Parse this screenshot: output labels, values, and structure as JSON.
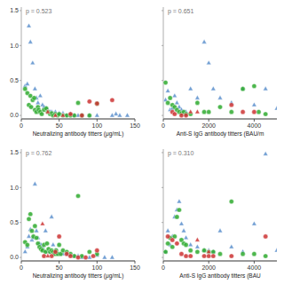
{
  "chart_data": [
    {
      "type": "scatter",
      "annotation": "p = 0.523",
      "x_label": "Neutralizing antibody titters (μg/mL)",
      "xlim": [
        0,
        150
      ],
      "ylim": [
        -0.05,
        1.55
      ],
      "yticks": [
        {
          "value": 0.0,
          "label": "0.0"
        },
        0.5,
        {
          "value": 1.0,
          "label": "1.0"
        },
        1.5
      ],
      "xticks": [
        0,
        50,
        100,
        150
      ],
      "series": [
        {
          "color": "#5b8fcc",
          "marker": "triangle",
          "x": [
            5,
            8,
            10,
            12,
            15,
            18,
            20,
            22,
            25,
            28,
            30,
            33,
            35,
            38,
            40,
            42,
            45,
            50,
            55,
            60,
            65,
            70,
            75,
            80,
            90,
            100,
            120,
            125,
            130,
            140
          ],
          "values": [
            0.42,
            0.45,
            1.28,
            1.05,
            0.75,
            0.38,
            0.25,
            0.18,
            0.28,
            0.15,
            0.12,
            0.1,
            0.08,
            0.05,
            0.05,
            0.03,
            0.05,
            0.03,
            0.03,
            0.0,
            0.02,
            0.0,
            0.0,
            0.0,
            0.0,
            0.0,
            0.0,
            0.02,
            0.0,
            0.0
          ]
        },
        {
          "color": "#2eaa2e",
          "marker": "circle",
          "x": [
            5,
            8,
            10,
            12,
            13,
            15,
            17,
            18,
            20,
            22,
            23,
            25,
            27,
            30,
            33,
            35,
            38,
            40,
            42,
            45,
            48,
            50,
            55,
            60,
            65,
            70,
            75,
            80,
            90,
            100
          ],
          "values": [
            0.38,
            0.32,
            0.15,
            0.28,
            0.12,
            0.22,
            0.25,
            0.08,
            0.05,
            0.12,
            0.08,
            0.05,
            0.02,
            0.08,
            0.1,
            0.05,
            0.02,
            0.03,
            0.0,
            0.02,
            0.0,
            0.02,
            0.0,
            0.0,
            0.0,
            0.0,
            0.18,
            0.0,
            0.0,
            0.17
          ]
        },
        {
          "color": "#cc3333",
          "marker": "circle",
          "x": [
            65,
            80,
            90,
            100,
            120
          ],
          "values": [
            0.02,
            0.0,
            0.2,
            0.17,
            0.22
          ]
        },
        {
          "color": "#cc3333",
          "marker": "triangle",
          "x": [
            35,
            45,
            55
          ],
          "values": [
            0.05,
            0.0,
            0.0
          ]
        }
      ]
    },
    {
      "type": "scatter",
      "annotation": "p = 0.651",
      "x_label": "Anti-S IgG antibody titters (BAU/m",
      "xlim": [
        0,
        5000
      ],
      "ylim": [
        -0.05,
        1.55
      ],
      "yticks": [
        {
          "value": 0.0,
          "label": "0.0"
        },
        0.5,
        {
          "value": 1.0,
          "label": "1.0"
        },
        1.5
      ],
      "xticks": [
        0,
        2000,
        4000
      ],
      "tick_labels": "x",
      "series": [
        {
          "color": "#5b8fcc",
          "marker": "triangle",
          "x": [
            100,
            200,
            300,
            400,
            500,
            600,
            700,
            800,
            900,
            1000,
            1200,
            1500,
            1800,
            2000,
            2200,
            2500,
            3000,
            3500,
            4000,
            4500,
            5000
          ],
          "values": [
            0.22,
            0.35,
            0.08,
            0.1,
            0.28,
            0.18,
            0.12,
            0.08,
            0.05,
            0.05,
            0.38,
            0.25,
            1.05,
            0.75,
            0.38,
            0.25,
            0.18,
            0.38,
            0.15,
            0.38,
            0.1
          ]
        },
        {
          "color": "#2eaa2e",
          "marker": "circle",
          "x": [
            100,
            200,
            300,
            400,
            500,
            600,
            700,
            800,
            900,
            1000,
            1200,
            1500,
            1800,
            2000,
            2500,
            3000,
            3500,
            4000,
            4200,
            4500
          ],
          "values": [
            0.47,
            0.18,
            0.25,
            0.15,
            0.12,
            0.08,
            0.05,
            0.03,
            0.05,
            0.02,
            0.02,
            0.18,
            0.05,
            0.05,
            0.12,
            0.05,
            0.38,
            0.42,
            0.05,
            0.02
          ]
        },
        {
          "color": "#cc3333",
          "marker": "circle",
          "x": [
            400,
            500,
            800,
            1000,
            3000,
            3500,
            4000
          ],
          "values": [
            0.05,
            0.02,
            0.0,
            0.0,
            0.15,
            0.05,
            0.05
          ]
        },
        {
          "color": "#cc3333",
          "marker": "triangle",
          "x": [
            1200,
            1500
          ],
          "values": [
            0.05,
            0.05
          ]
        }
      ]
    },
    {
      "type": "scatter",
      "annotation": "p = 0.762",
      "x_label": "Neutralizing antibody titters (μg/mL)",
      "xlim": [
        0,
        150
      ],
      "ylim": [
        -0.05,
        1.55
      ],
      "yticks": [
        {
          "value": 0.0,
          "label": "0.0"
        },
        0.5,
        {
          "value": 1.0,
          "label": "1.0"
        },
        1.5
      ],
      "xticks": [
        0,
        50,
        100,
        150
      ],
      "series": [
        {
          "color": "#5b8fcc",
          "marker": "triangle",
          "x": [
            5,
            8,
            10,
            12,
            14,
            16,
            18,
            20,
            22,
            24,
            26,
            28,
            30,
            32,
            35,
            38,
            40,
            42,
            45,
            48,
            50,
            55,
            60,
            65,
            70,
            75,
            80,
            90,
            100,
            110,
            120
          ],
          "values": [
            0.08,
            0.15,
            0.3,
            0.4,
            0.25,
            0.28,
            1.05,
            0.38,
            0.28,
            0.2,
            0.18,
            0.15,
            0.1,
            0.38,
            0.08,
            0.08,
            0.58,
            0.18,
            0.1,
            0.05,
            0.05,
            0.05,
            0.05,
            0.03,
            0.02,
            0.02,
            0.0,
            0.0,
            0.03,
            0.0,
            0.0
          ]
        },
        {
          "color": "#2eaa2e",
          "marker": "circle",
          "x": [
            5,
            8,
            10,
            12,
            14,
            16,
            18,
            20,
            22,
            24,
            26,
            28,
            30,
            32,
            34,
            36,
            38,
            40,
            42,
            44,
            46,
            48,
            50,
            52,
            55,
            60,
            65,
            70,
            75,
            80,
            90,
            100
          ],
          "values": [
            0.22,
            0.18,
            0.55,
            0.62,
            0.38,
            0.3,
            0.45,
            0.28,
            0.2,
            0.15,
            0.12,
            0.1,
            0.18,
            0.08,
            0.2,
            0.12,
            0.08,
            0.1,
            0.08,
            0.05,
            0.1,
            0.05,
            0.18,
            0.05,
            0.1,
            0.08,
            0.05,
            0.02,
            0.88,
            0.02,
            0.08,
            0.05
          ]
        },
        {
          "color": "#cc3333",
          "marker": "circle",
          "x": [
            30,
            40,
            45,
            50,
            60,
            65,
            75,
            85,
            95,
            100
          ],
          "values": [
            0.02,
            0.02,
            0.08,
            0.3,
            0.05,
            0.02,
            0.0,
            0.0,
            0.02,
            0.1
          ]
        },
        {
          "color": "#cc3333",
          "marker": "triangle",
          "x": [
            28,
            35
          ],
          "values": [
            0.48,
            0.02
          ]
        }
      ]
    },
    {
      "type": "scatter",
      "annotation": "p = 0.310",
      "x_label": "Anti-S IgG antibody titters (BAU",
      "xlim": [
        0,
        5000
      ],
      "ylim": [
        -0.05,
        1.55
      ],
      "yticks": [
        {
          "value": 0.0,
          "label": "0.0"
        },
        0.5,
        {
          "value": 1.0,
          "label": "1.0"
        },
        1.5
      ],
      "xticks": [
        0,
        2000,
        4000
      ],
      "tick_labels": "x",
      "series": [
        {
          "color": "#5b8fcc",
          "marker": "triangle",
          "x": [
            100,
            200,
            300,
            400,
            500,
            600,
            700,
            800,
            900,
            1000,
            1200,
            1500,
            1800,
            2000,
            2200,
            2500,
            3000,
            3500,
            4000,
            4500,
            5000
          ],
          "values": [
            0.08,
            0.38,
            0.18,
            0.3,
            0.58,
            0.68,
            0.8,
            0.48,
            0.38,
            0.28,
            0.18,
            0.15,
            0.1,
            0.1,
            0.08,
            0.38,
            0.15,
            0.08,
            0.48,
            1.48,
            0.1
          ]
        },
        {
          "color": "#2eaa2e",
          "marker": "circle",
          "x": [
            100,
            200,
            300,
            400,
            500,
            600,
            700,
            800,
            900,
            1000,
            1200,
            1500,
            1800,
            2000,
            2200,
            2500,
            3000,
            3500,
            4000,
            4500
          ],
          "values": [
            0.08,
            0.2,
            0.28,
            0.15,
            0.3,
            0.58,
            0.68,
            0.25,
            0.2,
            0.18,
            0.1,
            0.08,
            0.1,
            0.08,
            0.08,
            0.05,
            0.8,
            0.05,
            0.05,
            0.02
          ]
        },
        {
          "color": "#cc3333",
          "marker": "circle",
          "x": [
            200,
            400,
            600,
            800,
            1000,
            1200,
            1800,
            2000,
            2200,
            3000,
            4500
          ],
          "values": [
            0.3,
            0.25,
            0.2,
            0.05,
            0.02,
            0.02,
            0.02,
            0.02,
            0.02,
            0.02,
            0.3
          ]
        },
        {
          "color": "#cc3333",
          "marker": "triangle",
          "x": [
            1500,
            2000
          ],
          "values": [
            0.25,
            0.08
          ]
        }
      ]
    }
  ]
}
